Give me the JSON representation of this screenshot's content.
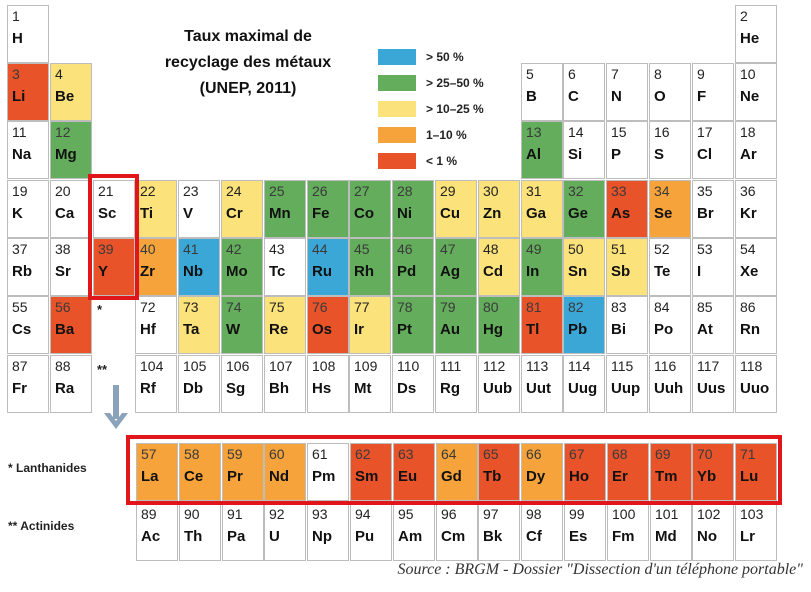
{
  "title_lines": [
    "Taux maximal de",
    "recyclage des métaux",
    "(UNEP, 2011)"
  ],
  "colors": {
    "blue": "#3aa7d6",
    "green": "#63ad5c",
    "yellow": "#fbe27a",
    "orange": "#f5a33a",
    "red": "#e8532a",
    "white": "#ffffff",
    "highlight": "#e0161b",
    "arrow": "#8aa3bb"
  },
  "legend": [
    {
      "label": "> 50 %",
      "color": "blue"
    },
    {
      "label": "> 25–50 %",
      "color": "green"
    },
    {
      "label": "> 10–25 %",
      "color": "yellow"
    },
    {
      "label": "1–10 %",
      "color": "orange"
    },
    {
      "label": "< 1 %",
      "color": "red"
    }
  ],
  "row_labels": {
    "lanthanides": "* Lanthanides",
    "actinides": "** Actinides"
  },
  "markers": {
    "lanthanide_marker": "*",
    "actinide_marker": "**"
  },
  "source": "Source : BRGM - Dossier \"Dissection d'un téléphone portable\"",
  "main_rows": [
    [
      {
        "num": "1",
        "sym": "H",
        "col": 1,
        "c": "white"
      },
      {
        "num": "2",
        "sym": "He",
        "col": 18,
        "c": "white"
      }
    ],
    [
      {
        "num": "3",
        "sym": "Li",
        "col": 1,
        "c": "red"
      },
      {
        "num": "4",
        "sym": "Be",
        "col": 2,
        "c": "yellow"
      },
      {
        "num": "5",
        "sym": "B",
        "col": 13,
        "c": "white"
      },
      {
        "num": "6",
        "sym": "C",
        "col": 14,
        "c": "white"
      },
      {
        "num": "7",
        "sym": "N",
        "col": 15,
        "c": "white"
      },
      {
        "num": "8",
        "sym": "O",
        "col": 16,
        "c": "white"
      },
      {
        "num": "9",
        "sym": "F",
        "col": 17,
        "c": "white"
      },
      {
        "num": "10",
        "sym": "Ne",
        "col": 18,
        "c": "white"
      }
    ],
    [
      {
        "num": "11",
        "sym": "Na",
        "col": 1,
        "c": "white"
      },
      {
        "num": "12",
        "sym": "Mg",
        "col": 2,
        "c": "green"
      },
      {
        "num": "13",
        "sym": "Al",
        "col": 13,
        "c": "green"
      },
      {
        "num": "14",
        "sym": "Si",
        "col": 14,
        "c": "white"
      },
      {
        "num": "15",
        "sym": "P",
        "col": 15,
        "c": "white"
      },
      {
        "num": "16",
        "sym": "S",
        "col": 16,
        "c": "white"
      },
      {
        "num": "17",
        "sym": "Cl",
        "col": 17,
        "c": "white"
      },
      {
        "num": "18",
        "sym": "Ar",
        "col": 18,
        "c": "white"
      }
    ],
    [
      {
        "num": "19",
        "sym": "K",
        "col": 1,
        "c": "white"
      },
      {
        "num": "20",
        "sym": "Ca",
        "col": 2,
        "c": "white"
      },
      {
        "num": "21",
        "sym": "Sc",
        "col": 3,
        "c": "white"
      },
      {
        "num": "22",
        "sym": "Ti",
        "col": 4,
        "c": "yellow"
      },
      {
        "num": "23",
        "sym": "V",
        "col": 5,
        "c": "white"
      },
      {
        "num": "24",
        "sym": "Cr",
        "col": 6,
        "c": "yellow"
      },
      {
        "num": "25",
        "sym": "Mn",
        "col": 7,
        "c": "green"
      },
      {
        "num": "26",
        "sym": "Fe",
        "col": 8,
        "c": "green"
      },
      {
        "num": "27",
        "sym": "Co",
        "col": 9,
        "c": "green"
      },
      {
        "num": "28",
        "sym": "Ni",
        "col": 10,
        "c": "green"
      },
      {
        "num": "29",
        "sym": "Cu",
        "col": 11,
        "c": "yellow"
      },
      {
        "num": "30",
        "sym": "Zn",
        "col": 12,
        "c": "yellow"
      },
      {
        "num": "31",
        "sym": "Ga",
        "col": 13,
        "c": "yellow"
      },
      {
        "num": "32",
        "sym": "Ge",
        "col": 14,
        "c": "green"
      },
      {
        "num": "33",
        "sym": "As",
        "col": 15,
        "c": "red"
      },
      {
        "num": "34",
        "sym": "Se",
        "col": 16,
        "c": "orange"
      },
      {
        "num": "35",
        "sym": "Br",
        "col": 17,
        "c": "white"
      },
      {
        "num": "36",
        "sym": "Kr",
        "col": 18,
        "c": "white"
      }
    ],
    [
      {
        "num": "37",
        "sym": "Rb",
        "col": 1,
        "c": "white"
      },
      {
        "num": "38",
        "sym": "Sr",
        "col": 2,
        "c": "white"
      },
      {
        "num": "39",
        "sym": "Y",
        "col": 3,
        "c": "red"
      },
      {
        "num": "40",
        "sym": "Zr",
        "col": 4,
        "c": "orange"
      },
      {
        "num": "41",
        "sym": "Nb",
        "col": 5,
        "c": "blue"
      },
      {
        "num": "42",
        "sym": "Mo",
        "col": 6,
        "c": "green"
      },
      {
        "num": "43",
        "sym": "Tc",
        "col": 7,
        "c": "white"
      },
      {
        "num": "44",
        "sym": "Ru",
        "col": 8,
        "c": "blue"
      },
      {
        "num": "45",
        "sym": "Rh",
        "col": 9,
        "c": "green"
      },
      {
        "num": "46",
        "sym": "Pd",
        "col": 10,
        "c": "green"
      },
      {
        "num": "47",
        "sym": "Ag",
        "col": 11,
        "c": "green"
      },
      {
        "num": "48",
        "sym": "Cd",
        "col": 12,
        "c": "yellow"
      },
      {
        "num": "49",
        "sym": "In",
        "col": 13,
        "c": "green"
      },
      {
        "num": "50",
        "sym": "Sn",
        "col": 14,
        "c": "yellow"
      },
      {
        "num": "51",
        "sym": "Sb",
        "col": 15,
        "c": "yellow"
      },
      {
        "num": "52",
        "sym": "Te",
        "col": 16,
        "c": "white"
      },
      {
        "num": "53",
        "sym": "I",
        "col": 17,
        "c": "white"
      },
      {
        "num": "54",
        "sym": "Xe",
        "col": 18,
        "c": "white"
      }
    ],
    [
      {
        "num": "55",
        "sym": "Cs",
        "col": 1,
        "c": "white"
      },
      {
        "num": "56",
        "sym": "Ba",
        "col": 2,
        "c": "red"
      },
      {
        "num": "72",
        "sym": "Hf",
        "col": 4,
        "c": "white"
      },
      {
        "num": "73",
        "sym": "Ta",
        "col": 5,
        "c": "yellow"
      },
      {
        "num": "74",
        "sym": "W",
        "col": 6,
        "c": "green"
      },
      {
        "num": "75",
        "sym": "Re",
        "col": 7,
        "c": "yellow"
      },
      {
        "num": "76",
        "sym": "Os",
        "col": 8,
        "c": "red"
      },
      {
        "num": "77",
        "sym": "Ir",
        "col": 9,
        "c": "yellow"
      },
      {
        "num": "78",
        "sym": "Pt",
        "col": 10,
        "c": "green"
      },
      {
        "num": "79",
        "sym": "Au",
        "col": 11,
        "c": "green"
      },
      {
        "num": "80",
        "sym": "Hg",
        "col": 12,
        "c": "green"
      },
      {
        "num": "81",
        "sym": "Tl",
        "col": 13,
        "c": "red"
      },
      {
        "num": "82",
        "sym": "Pb",
        "col": 14,
        "c": "blue"
      },
      {
        "num": "83",
        "sym": "Bi",
        "col": 15,
        "c": "white"
      },
      {
        "num": "84",
        "sym": "Po",
        "col": 16,
        "c": "white"
      },
      {
        "num": "85",
        "sym": "At",
        "col": 17,
        "c": "white"
      },
      {
        "num": "86",
        "sym": "Rn",
        "col": 18,
        "c": "white"
      }
    ],
    [
      {
        "num": "87",
        "sym": "Fr",
        "col": 1,
        "c": "white"
      },
      {
        "num": "88",
        "sym": "Ra",
        "col": 2,
        "c": "white"
      },
      {
        "num": "104",
        "sym": "Rf",
        "col": 4,
        "c": "white"
      },
      {
        "num": "105",
        "sym": "Db",
        "col": 5,
        "c": "white"
      },
      {
        "num": "106",
        "sym": "Sg",
        "col": 6,
        "c": "white"
      },
      {
        "num": "107",
        "sym": "Bh",
        "col": 7,
        "c": "white"
      },
      {
        "num": "108",
        "sym": "Hs",
        "col": 8,
        "c": "white"
      },
      {
        "num": "109",
        "sym": "Mt",
        "col": 9,
        "c": "white"
      },
      {
        "num": "110",
        "sym": "Ds",
        "col": 10,
        "c": "white"
      },
      {
        "num": "111",
        "sym": "Rg",
        "col": 11,
        "c": "white"
      },
      {
        "num": "112",
        "sym": "Uub",
        "col": 12,
        "c": "white"
      },
      {
        "num": "113",
        "sym": "Uut",
        "col": 13,
        "c": "white"
      },
      {
        "num": "114",
        "sym": "Uug",
        "col": 14,
        "c": "white"
      },
      {
        "num": "115",
        "sym": "Uup",
        "col": 15,
        "c": "white"
      },
      {
        "num": "116",
        "sym": "Uuh",
        "col": 16,
        "c": "white"
      },
      {
        "num": "117",
        "sym": "Uus",
        "col": 17,
        "c": "white"
      },
      {
        "num": "118",
        "sym": "Uuo",
        "col": 18,
        "c": "white"
      }
    ]
  ],
  "lanthanides": [
    {
      "num": "57",
      "sym": "La",
      "c": "orange"
    },
    {
      "num": "58",
      "sym": "Ce",
      "c": "orange"
    },
    {
      "num": "59",
      "sym": "Pr",
      "c": "orange"
    },
    {
      "num": "60",
      "sym": "Nd",
      "c": "orange"
    },
    {
      "num": "61",
      "sym": "Pm",
      "c": "white"
    },
    {
      "num": "62",
      "sym": "Sm",
      "c": "red"
    },
    {
      "num": "63",
      "sym": "Eu",
      "c": "red"
    },
    {
      "num": "64",
      "sym": "Gd",
      "c": "orange"
    },
    {
      "num": "65",
      "sym": "Tb",
      "c": "red"
    },
    {
      "num": "66",
      "sym": "Dy",
      "c": "orange"
    },
    {
      "num": "67",
      "sym": "Ho",
      "c": "red"
    },
    {
      "num": "68",
      "sym": "Er",
      "c": "red"
    },
    {
      "num": "69",
      "sym": "Tm",
      "c": "red"
    },
    {
      "num": "70",
      "sym": "Yb",
      "c": "red"
    },
    {
      "num": "71",
      "sym": "Lu",
      "c": "red"
    }
  ],
  "actinides": [
    {
      "num": "89",
      "sym": "Ac",
      "c": "white"
    },
    {
      "num": "90",
      "sym": "Th",
      "c": "white"
    },
    {
      "num": "91",
      "sym": "Pa",
      "c": "white"
    },
    {
      "num": "92",
      "sym": "U",
      "c": "white"
    },
    {
      "num": "93",
      "sym": "Np",
      "c": "white"
    },
    {
      "num": "94",
      "sym": "Pu",
      "c": "white"
    },
    {
      "num": "95",
      "sym": "Am",
      "c": "white"
    },
    {
      "num": "96",
      "sym": "Cm",
      "c": "white"
    },
    {
      "num": "97",
      "sym": "Bk",
      "c": "white"
    },
    {
      "num": "98",
      "sym": "Cf",
      "c": "white"
    },
    {
      "num": "99",
      "sym": "Es",
      "c": "white"
    },
    {
      "num": "100",
      "sym": "Fm",
      "c": "white"
    },
    {
      "num": "101",
      "sym": "Md",
      "c": "white"
    },
    {
      "num": "102",
      "sym": "No",
      "c": "white"
    },
    {
      "num": "103",
      "sym": "Lr",
      "c": "white"
    }
  ]
}
